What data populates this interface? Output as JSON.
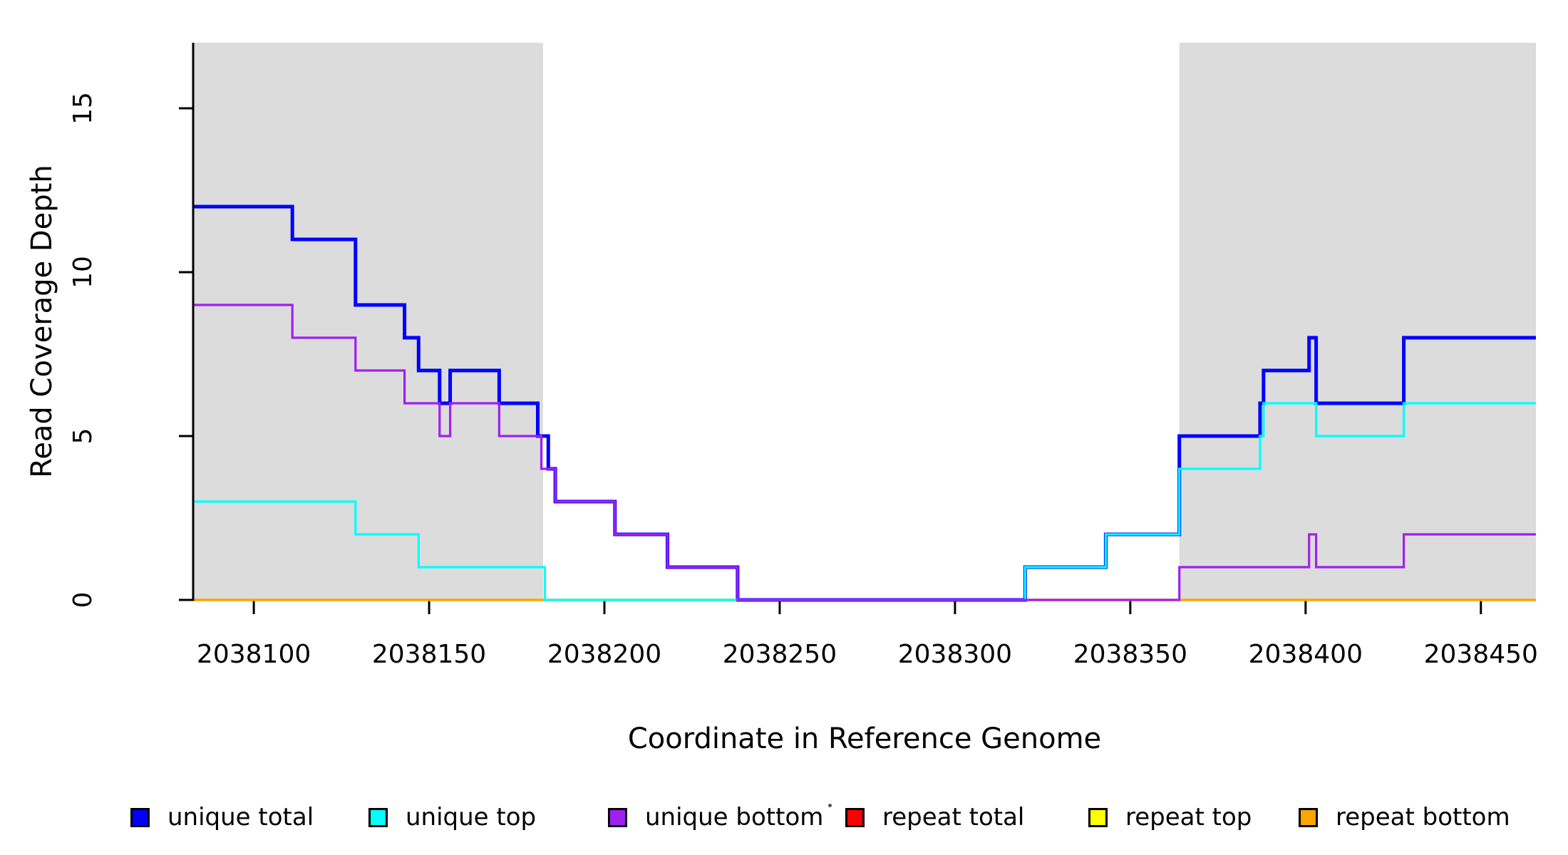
{
  "chart_data": {
    "type": "line",
    "subtype": "step-post",
    "title": "",
    "xlabel": "Coordinate in Reference Genome",
    "ylabel": "Read Coverage Depth",
    "xlim": [
      2038082.7,
      2038465.7
    ],
    "ylim": [
      0,
      17
    ],
    "x_ticks": [
      2038100,
      2038150,
      2038200,
      2038250,
      2038300,
      2038350,
      2038400,
      2038450
    ],
    "y_ticks": [
      0,
      5,
      10,
      15
    ],
    "grid": false,
    "legend_position": "bottom",
    "highlight_regions": [
      {
        "name": "left-repeat-region",
        "x0": 2038082.7,
        "x1": 2038182.5,
        "color": "#DCDCDC"
      },
      {
        "name": "right-repeat-region",
        "x0": 2038364,
        "x1": 2038465.7,
        "color": "#DCDCDC"
      }
    ],
    "series": [
      {
        "name": "unique total",
        "color": "#0000FF",
        "line_width": 5,
        "steps": [
          [
            2038083,
            12
          ],
          [
            2038111,
            11
          ],
          [
            2038129,
            9
          ],
          [
            2038143,
            8
          ],
          [
            2038147,
            7
          ],
          [
            2038153,
            6
          ],
          [
            2038156,
            7
          ],
          [
            2038170,
            6
          ],
          [
            2038181,
            5
          ],
          [
            2038184,
            4
          ],
          [
            2038186,
            3
          ],
          [
            2038203,
            2
          ],
          [
            2038218,
            1
          ],
          [
            2038238,
            0
          ],
          [
            2038320,
            1
          ],
          [
            2038343,
            2
          ],
          [
            2038364,
            5
          ],
          [
            2038387,
            6
          ],
          [
            2038388,
            7
          ],
          [
            2038401,
            8
          ],
          [
            2038403,
            6
          ],
          [
            2038428,
            8
          ]
        ]
      },
      {
        "name": "unique top",
        "color": "#00FFFF",
        "line_width": 3.2,
        "steps": [
          [
            2038083,
            3
          ],
          [
            2038129,
            2
          ],
          [
            2038147,
            1
          ],
          [
            2038183,
            0
          ],
          [
            2038320,
            1
          ],
          [
            2038343,
            2
          ],
          [
            2038364,
            4
          ],
          [
            2038387,
            5
          ],
          [
            2038388,
            6
          ],
          [
            2038403,
            5
          ],
          [
            2038428,
            6
          ]
        ]
      },
      {
        "name": "unique bottom",
        "color": "#A020F0",
        "line_width": 3.2,
        "steps": [
          [
            2038083,
            9
          ],
          [
            2038111,
            8
          ],
          [
            2038129,
            7
          ],
          [
            2038143,
            6
          ],
          [
            2038153,
            5
          ],
          [
            2038156,
            6
          ],
          [
            2038170,
            5
          ],
          [
            2038182,
            4
          ],
          [
            2038186,
            3
          ],
          [
            2038203,
            2
          ],
          [
            2038218,
            1
          ],
          [
            2038238,
            0
          ],
          [
            2038364,
            1
          ],
          [
            2038401,
            2
          ],
          [
            2038403,
            1
          ],
          [
            2038428,
            2
          ]
        ]
      },
      {
        "name": "repeat total",
        "color": "#FF0000",
        "line_width": 2.5,
        "steps": [
          [
            2038083,
            0
          ]
        ]
      },
      {
        "name": "repeat top",
        "color": "#FFFF00",
        "line_width": 2.5,
        "steps": [
          [
            2038083,
            0
          ]
        ]
      },
      {
        "name": "repeat bottom",
        "color": "#FFA500",
        "line_width": 3.5,
        "steps": [
          [
            2038083,
            0
          ]
        ]
      }
    ],
    "legend": {
      "entries": [
        {
          "label": "unique total",
          "color": "#0000FF"
        },
        {
          "label": "unique top",
          "color": "#00FFFF"
        },
        {
          "label": "unique bottom",
          "color": "#A020F0"
        },
        {
          "label": "repeat total",
          "color": "#FF0000"
        },
        {
          "label": "repeat top",
          "color": "#FFFF00"
        },
        {
          "label": "repeat bottom",
          "color": "#FFA500"
        }
      ]
    }
  }
}
